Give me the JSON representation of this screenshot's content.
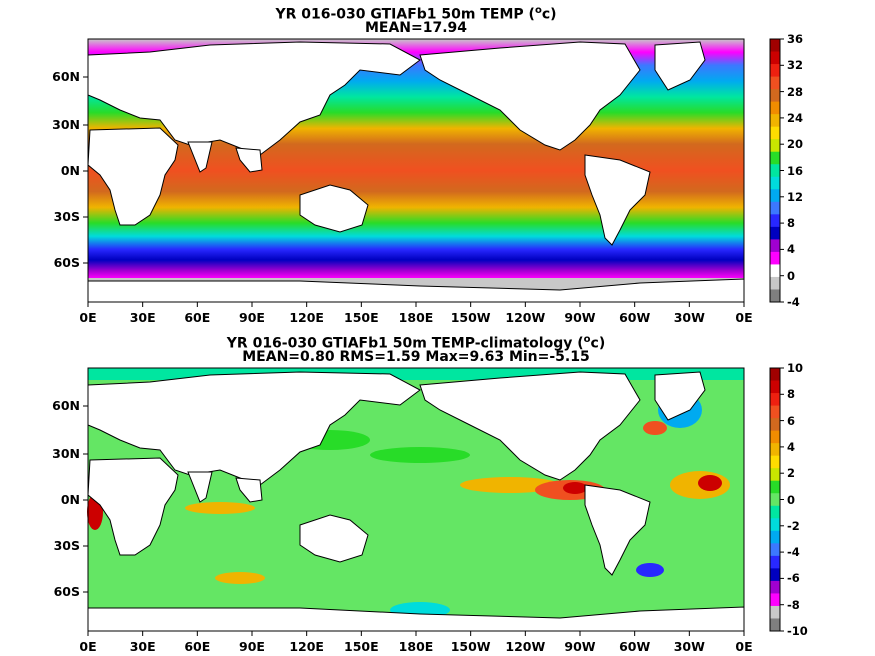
{
  "panels": [
    {
      "title_line1": "YR 016-030 GTIAFb1 50m TEMP (",
      "title_unit_sup": "o",
      "title_unit_end": "c)",
      "title_line2": "MEAN=17.94",
      "colorbar_labels": [
        "36",
        "32",
        "28",
        "24",
        "20",
        "16",
        "12",
        "8",
        "4",
        "0",
        "-4"
      ],
      "colorbar_colors": [
        "#a00000",
        "#cc0000",
        "#ee2010",
        "#f05020",
        "#d2691e",
        "#f08c00",
        "#f0b400",
        "#ffdd00",
        "#c8e600",
        "#28dc28",
        "#00e6a0",
        "#00dcdc",
        "#00aaf0",
        "#3c78ff",
        "#2828ff",
        "#0000c0",
        "#a000d0",
        "#ff00ff",
        "#ffffff",
        "#c8c8c8",
        "#7f7f7f"
      ]
    },
    {
      "title_line1": "YR 016-030 GTIAFb1 50m TEMP-climatology (",
      "title_unit_sup": "o",
      "title_unit_end": "c)",
      "title_line2": "MEAN=0.80   RMS=1.59   Max=9.63   Min=-5.15",
      "colorbar_labels": [
        "10",
        "8",
        "6",
        "4",
        "2",
        "0",
        "-2",
        "-4",
        "-6",
        "-8",
        "-10"
      ],
      "colorbar_colors": [
        "#a00000",
        "#cc0000",
        "#ee2010",
        "#f05020",
        "#d2691e",
        "#f08c00",
        "#f0b400",
        "#ffdd00",
        "#c8e600",
        "#28dc28",
        "#64e664",
        "#00e6a0",
        "#00dcdc",
        "#00aaf0",
        "#3c78ff",
        "#2828ff",
        "#0000c0",
        "#a000d0",
        "#ff00ff",
        "#c8c8c8",
        "#7f7f7f"
      ]
    }
  ],
  "axes": {
    "lat_labels": [
      "60N",
      "30N",
      "0N",
      "30S",
      "60S"
    ],
    "lon_labels": [
      "0E",
      "30E",
      "60E",
      "90E",
      "120E",
      "150E",
      "180E",
      "150W",
      "120W",
      "90W",
      "60W",
      "30W",
      "0E"
    ]
  },
  "colors": {
    "land": "#ffffff",
    "ice": "#c8c8c8",
    "coast": "#000000"
  }
}
